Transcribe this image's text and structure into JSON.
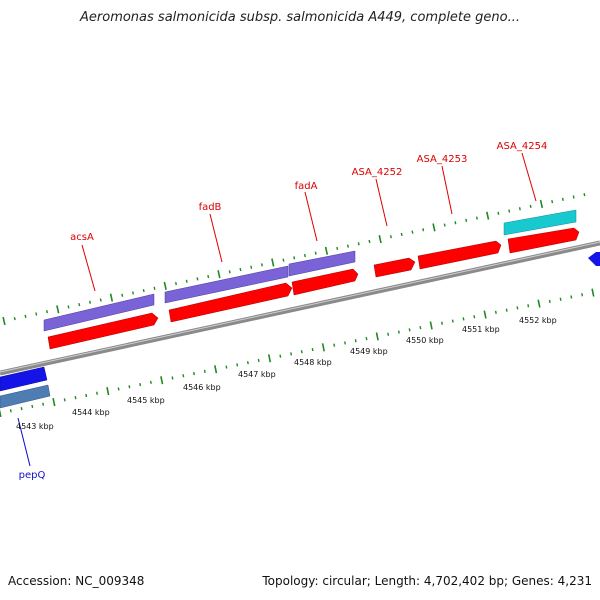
{
  "title": "Aeromonas salmonicida subsp. salmonicida A449, complete geno...",
  "footer": {
    "accession": "Accession: NC_009348",
    "summary": "Topology: circular; Length: 4,702,402 bp; Genes: 4,231"
  },
  "colors": {
    "backbone": "#8a8a8a",
    "cds": "#ff0000",
    "gene_purple": "#7a63d6",
    "gene_cyan": "#19c9d0",
    "gene_blue": "#1414e6",
    "gene_steel": "#4f7db3",
    "tick": "#1f8a1f",
    "label_red": "#dd0000",
    "label_blue": "#1010cc"
  },
  "scale": {
    "unit": "kbp",
    "ticks": [
      {
        "kbp": 4543,
        "label": "4543 kbp"
      },
      {
        "kbp": 4544,
        "label": "4544 kbp"
      },
      {
        "kbp": 4545,
        "label": "4545 kbp"
      },
      {
        "kbp": 4546,
        "label": "4546 kbp"
      },
      {
        "kbp": 4547,
        "label": "4547 kbp"
      },
      {
        "kbp": 4548,
        "label": "4548 kbp"
      },
      {
        "kbp": 4549,
        "label": "4549 kbp"
      },
      {
        "kbp": 4550,
        "label": "4550 kbp"
      },
      {
        "kbp": 4551,
        "label": "4551 kbp"
      },
      {
        "kbp": 4552,
        "label": "4552 kbp"
      }
    ]
  },
  "features": [
    {
      "name": "pepQ",
      "color": "blue"
    },
    {
      "name": "acsA",
      "color": "red"
    },
    {
      "name": "fadB",
      "color": "red"
    },
    {
      "name": "fadA",
      "color": "red"
    },
    {
      "name": "ASA_4252",
      "color": "red"
    },
    {
      "name": "ASA_4253",
      "color": "red"
    },
    {
      "name": "ASA_4254",
      "color": "red"
    }
  ]
}
